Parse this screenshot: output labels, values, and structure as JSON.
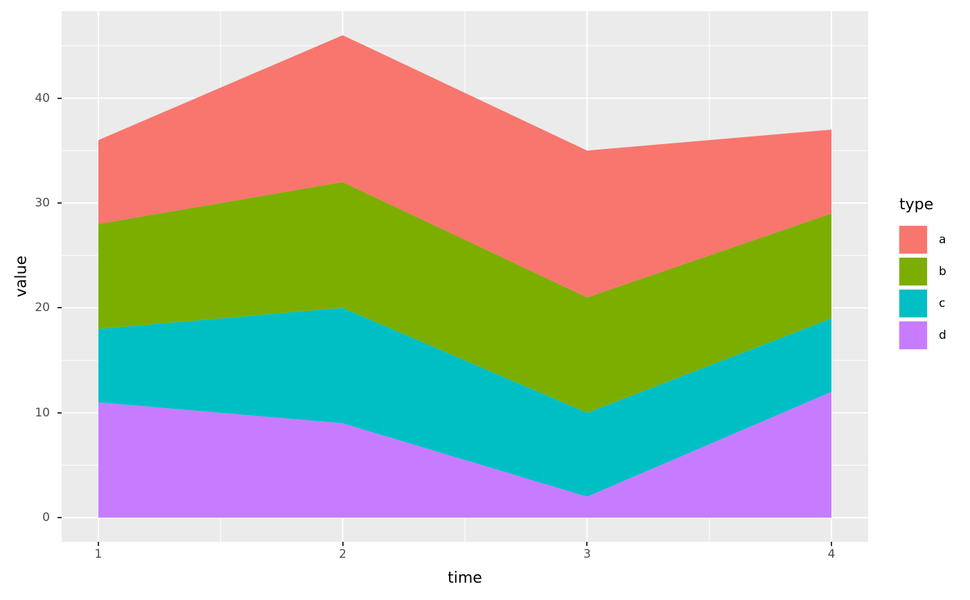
{
  "chart_data": {
    "type": "area",
    "stacked": true,
    "title": "",
    "xlabel": "time",
    "ylabel": "value",
    "x": [
      1,
      2,
      3,
      4
    ],
    "x_tick_labels": [
      "1",
      "2",
      "3",
      "4"
    ],
    "y_tick_values": [
      0,
      10,
      20,
      30,
      40
    ],
    "y_tick_labels": [
      "0",
      "10",
      "20",
      "30",
      "40"
    ],
    "x_minor_values": [
      1.5,
      2.5,
      3.5
    ],
    "y_minor_values": [
      5,
      15,
      25,
      35,
      45
    ],
    "x_range": [
      0.85,
      4.15
    ],
    "y_range": [
      -2.3,
      48.3
    ],
    "grid": true,
    "series": [
      {
        "name": "a",
        "color": "#F8766D",
        "values": [
          8,
          14,
          14,
          8
        ]
      },
      {
        "name": "b",
        "color": "#7CAE00",
        "values": [
          10,
          12,
          11,
          10
        ]
      },
      {
        "name": "c",
        "color": "#00BFC4",
        "values": [
          7,
          11,
          8,
          7
        ]
      },
      {
        "name": "d",
        "color": "#C77CFF",
        "values": [
          11,
          9,
          2,
          12
        ]
      }
    ],
    "stack_order_bottom_to_top": [
      "d",
      "c",
      "b",
      "a"
    ],
    "stack_tops": {
      "d": [
        11,
        9,
        2,
        12
      ],
      "c": [
        18,
        20,
        10,
        19
      ],
      "b": [
        28,
        32,
        21,
        29
      ],
      "a": [
        36,
        46,
        35,
        37
      ]
    },
    "legend": {
      "title": "type",
      "position": "right",
      "entries": [
        "a",
        "b",
        "c",
        "d"
      ]
    },
    "colors": {
      "figure_bg": "#FFFFFF",
      "panel_bg": "#EBEBEB",
      "grid": "#FFFFFF",
      "tick_mark": "#333333",
      "tick_label": "#4D4D4D",
      "axis_title": "#000000",
      "legend_key_bg": "#F2F2F2"
    }
  }
}
